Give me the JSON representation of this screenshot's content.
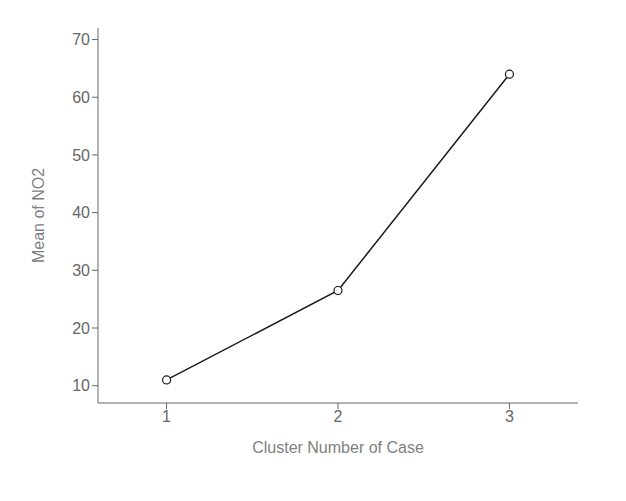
{
  "chart_data": {
    "type": "line",
    "x": [
      1,
      2,
      3
    ],
    "values": [
      11.0,
      26.5,
      64.0
    ],
    "xlabel": "Cluster Number of Case",
    "ylabel": "Mean of NO2",
    "xlim": [
      0.6,
      3.4
    ],
    "ylim": [
      7,
      72
    ],
    "xticks": [
      1,
      2,
      3
    ],
    "yticks": [
      10,
      20,
      30,
      40,
      50,
      60,
      70
    ],
    "color": "#1a1a1a",
    "marker": "circle",
    "grid": false
  }
}
